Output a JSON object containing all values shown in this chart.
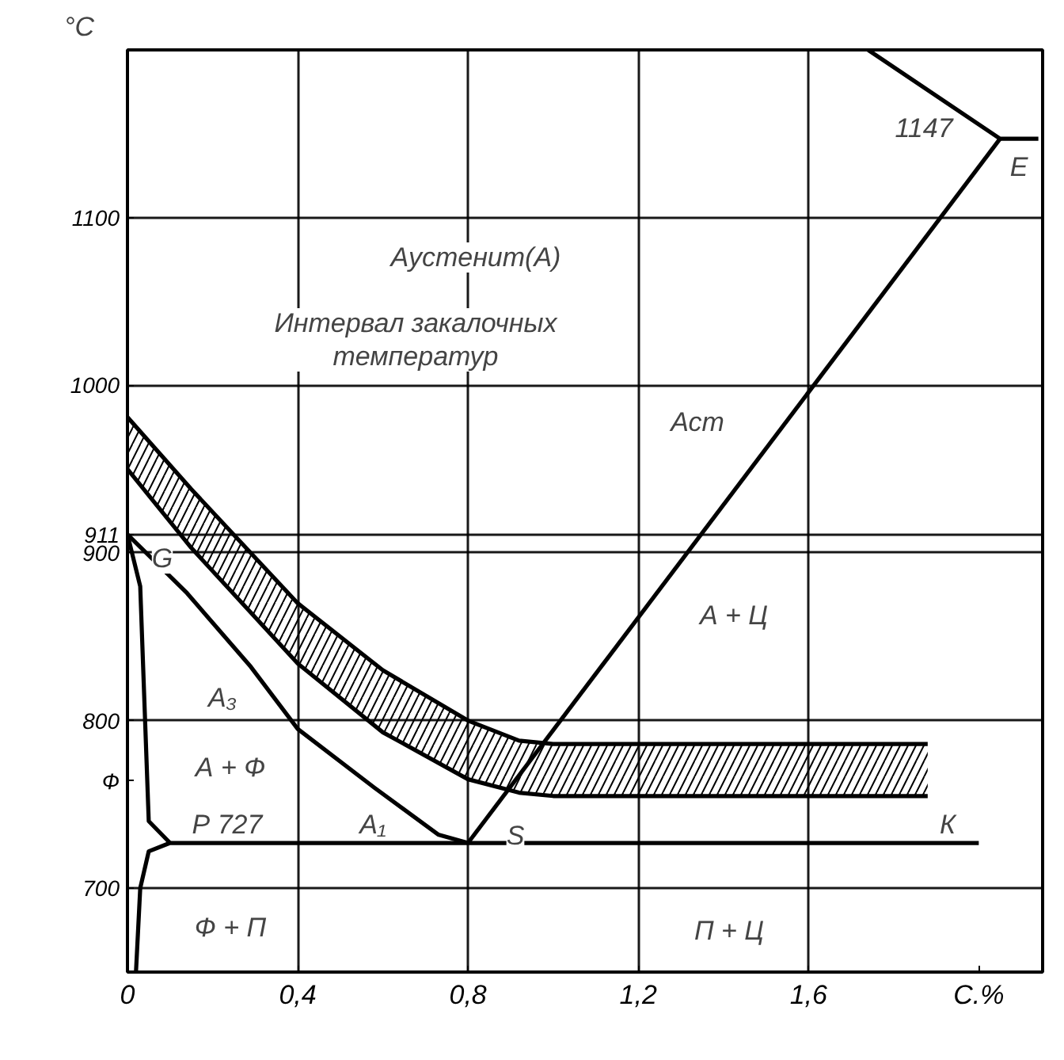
{
  "chart_data": {
    "type": "line",
    "xlabel": "С.%",
    "ylabel": "°С",
    "xlim": [
      0,
      2.15
    ],
    "ylim": [
      650,
      1200
    ],
    "xticks": [
      0,
      {
        "value": 0.4,
        "label": "0,4"
      },
      {
        "value": 0.8,
        "label": "0,8"
      },
      {
        "value": 1.2,
        "label": "1,2"
      },
      {
        "value": 1.6,
        "label": "1,6"
      }
    ],
    "yticks": [
      700,
      {
        "value": 764,
        "label": "Ф"
      },
      800,
      900,
      911,
      1000,
      1100
    ],
    "grid": true,
    "marker": "none",
    "line_style": "solid",
    "series": [
      {
        "color": "#000000",
        "x": [
          0,
          0.14,
          0.29,
          0.4,
          0.58,
          0.73,
          0.8
        ],
        "values": [
          911,
          876,
          832,
          795,
          760,
          732,
          727
        ]
      },
      {
        "color": "#000000",
        "x": [
          0,
          0.15,
          0.4,
          0.6,
          0.8,
          0.92,
          1.0,
          1.88
        ],
        "values": [
          950,
          903,
          834,
          793,
          765,
          757,
          755,
          755
        ]
      },
      {
        "color": "#000000",
        "x": [
          0,
          0.15,
          0.4,
          0.6,
          0.8,
          0.92,
          1.0,
          1.88
        ],
        "values": [
          981,
          938,
          870,
          830,
          800,
          788,
          786,
          786
        ],
        "lower": [
          950,
          903,
          834,
          793,
          765,
          757,
          755,
          755
        ],
        "upper": [
          981,
          938,
          870,
          830,
          800,
          788,
          786,
          786
        ]
      },
      {
        "color": "#000000",
        "x": [
          0.8,
          2.05
        ],
        "values": [
          727,
          1147
        ]
      },
      {
        "color": "#000000",
        "x": [
          1.74,
          2.05,
          2.14
        ],
        "values": [
          1200,
          1147,
          1147
        ]
      },
      {
        "color": "#000000",
        "x": [
          0.02,
          0.03,
          0.05,
          0.1,
          2.0
        ],
        "values": [
          650,
          700,
          722,
          727,
          727
        ]
      },
      {
        "color": "#000000",
        "x": [
          0,
          0.03,
          0.05,
          0.1
        ],
        "values": [
          911,
          880,
          740,
          727
        ]
      }
    ],
    "annotations": [
      "Аустенит(А)",
      "Интервал закалочных\nтемператур",
      "Аст",
      "А + Ц",
      "А₃",
      "А + Ф",
      "Р 727",
      "А₁",
      "S",
      "К",
      "G",
      "E",
      "1147",
      "Ф + П",
      "П + Ц"
    ]
  }
}
